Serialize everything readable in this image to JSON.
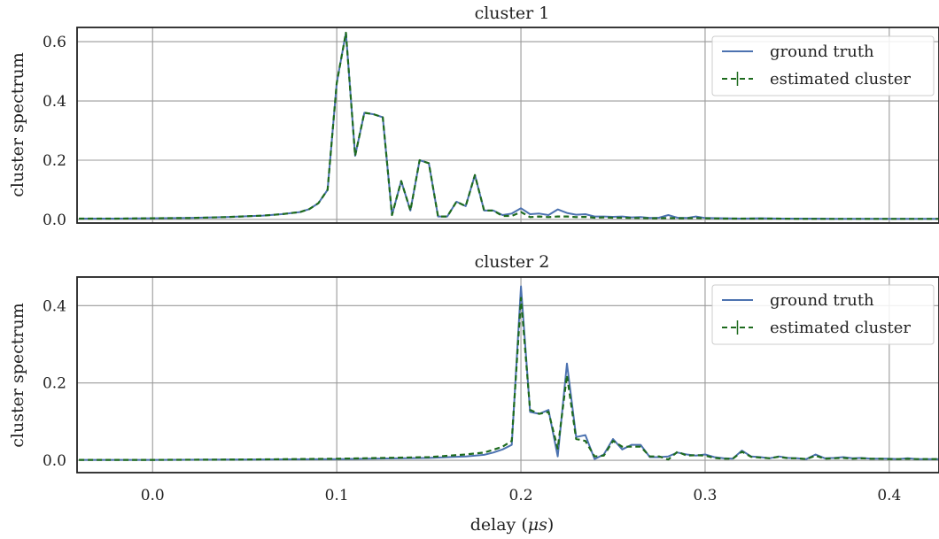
{
  "chart_data": [
    {
      "type": "line",
      "title": "cluster 1",
      "xlabel": "",
      "ylabel": "cluster spectrum",
      "xlim": [
        -0.041,
        0.427
      ],
      "ylim": [
        -0.012,
        0.648
      ],
      "xticks": [
        0.0,
        0.1,
        0.2,
        0.3,
        0.4
      ],
      "yticks": [
        0.0,
        0.2,
        0.4,
        0.6
      ],
      "ytick_labels": [
        "0.0",
        "0.2",
        "0.4",
        "0.6"
      ],
      "grid": true,
      "legend_position": "top-right",
      "x": [
        -0.04,
        -0.02,
        0.0,
        0.02,
        0.04,
        0.06,
        0.07,
        0.08,
        0.085,
        0.09,
        0.095,
        0.1,
        0.105,
        0.11,
        0.115,
        0.12,
        0.125,
        0.13,
        0.135,
        0.14,
        0.145,
        0.15,
        0.155,
        0.16,
        0.165,
        0.17,
        0.175,
        0.18,
        0.185,
        0.19,
        0.195,
        0.2,
        0.205,
        0.21,
        0.215,
        0.22,
        0.225,
        0.23,
        0.235,
        0.24,
        0.245,
        0.25,
        0.255,
        0.26,
        0.265,
        0.27,
        0.275,
        0.28,
        0.285,
        0.29,
        0.295,
        0.3,
        0.31,
        0.32,
        0.33,
        0.34,
        0.35,
        0.36,
        0.37,
        0.38,
        0.39,
        0.4,
        0.41,
        0.42,
        0.427
      ],
      "series": [
        {
          "name": "ground truth",
          "color": "#4c72b0",
          "style": "solid",
          "values": [
            0.003,
            0.003,
            0.004,
            0.005,
            0.008,
            0.013,
            0.018,
            0.025,
            0.035,
            0.055,
            0.1,
            0.46,
            0.63,
            0.215,
            0.36,
            0.355,
            0.345,
            0.015,
            0.13,
            0.03,
            0.2,
            0.19,
            0.01,
            0.01,
            0.06,
            0.045,
            0.15,
            0.03,
            0.03,
            0.015,
            0.02,
            0.038,
            0.018,
            0.02,
            0.015,
            0.034,
            0.022,
            0.016,
            0.018,
            0.01,
            0.01,
            0.009,
            0.01,
            0.007,
            0.008,
            0.005,
            0.006,
            0.015,
            0.006,
            0.005,
            0.01,
            0.005,
            0.004,
            0.003,
            0.004,
            0.003,
            0.003,
            0.003,
            0.002,
            0.002,
            0.002,
            0.002,
            0.002,
            0.002,
            0.002
          ]
        },
        {
          "name": "estimated cluster",
          "color": "#1e6b1e",
          "style": "dashed",
          "values": [
            0.003,
            0.003,
            0.004,
            0.005,
            0.008,
            0.013,
            0.018,
            0.025,
            0.035,
            0.055,
            0.1,
            0.46,
            0.63,
            0.215,
            0.36,
            0.355,
            0.345,
            0.015,
            0.13,
            0.03,
            0.2,
            0.19,
            0.01,
            0.01,
            0.06,
            0.045,
            0.15,
            0.03,
            0.03,
            0.012,
            0.012,
            0.025,
            0.008,
            0.01,
            0.008,
            0.01,
            0.01,
            0.008,
            0.009,
            0.006,
            0.007,
            0.006,
            0.006,
            0.005,
            0.005,
            0.004,
            0.004,
            0.005,
            0.004,
            0.004,
            0.005,
            0.004,
            0.003,
            0.003,
            0.003,
            0.003,
            0.002,
            0.002,
            0.002,
            0.002,
            0.002,
            0.002,
            0.002,
            0.002,
            0.002
          ]
        }
      ]
    },
    {
      "type": "line",
      "title": "cluster 2",
      "xlabel": "delay ($\\mu s$)",
      "ylabel": "cluster spectrum",
      "xlim": [
        -0.041,
        0.427
      ],
      "ylim": [
        -0.032,
        0.474
      ],
      "xticks": [
        0.0,
        0.1,
        0.2,
        0.3,
        0.4
      ],
      "xtick_labels": [
        "0.0",
        "0.1",
        "0.2",
        "0.3",
        "0.4"
      ],
      "yticks": [
        0.0,
        0.2,
        0.4
      ],
      "ytick_labels": [
        "0.0",
        "0.2",
        "0.4"
      ],
      "grid": true,
      "legend_position": "top-right",
      "x": [
        -0.04,
        0.0,
        0.05,
        0.1,
        0.15,
        0.17,
        0.18,
        0.185,
        0.19,
        0.195,
        0.2,
        0.205,
        0.21,
        0.215,
        0.22,
        0.225,
        0.23,
        0.235,
        0.24,
        0.245,
        0.25,
        0.255,
        0.26,
        0.265,
        0.27,
        0.275,
        0.28,
        0.285,
        0.29,
        0.295,
        0.3,
        0.305,
        0.31,
        0.315,
        0.32,
        0.325,
        0.33,
        0.335,
        0.34,
        0.345,
        0.35,
        0.355,
        0.36,
        0.365,
        0.37,
        0.375,
        0.38,
        0.385,
        0.39,
        0.395,
        0.4,
        0.405,
        0.41,
        0.415,
        0.42,
        0.427
      ],
      "series": [
        {
          "name": "ground truth",
          "color": "#4c72b0",
          "style": "solid",
          "values": [
            0.001,
            0.001,
            0.002,
            0.003,
            0.006,
            0.01,
            0.014,
            0.02,
            0.028,
            0.04,
            0.45,
            0.125,
            0.12,
            0.13,
            0.01,
            0.25,
            0.06,
            0.065,
            0.003,
            0.015,
            0.055,
            0.028,
            0.04,
            0.04,
            0.008,
            0.008,
            0.01,
            0.02,
            0.015,
            0.012,
            0.015,
            0.008,
            0.005,
            0.004,
            0.025,
            0.01,
            0.008,
            0.005,
            0.01,
            0.006,
            0.005,
            0.003,
            0.015,
            0.005,
            0.006,
            0.008,
            0.005,
            0.006,
            0.004,
            0.004,
            0.004,
            0.003,
            0.005,
            0.003,
            0.003,
            0.003
          ]
        },
        {
          "name": "estimated cluster",
          "color": "#1e6b1e",
          "style": "dashed",
          "values": [
            0.001,
            0.001,
            0.002,
            0.004,
            0.008,
            0.015,
            0.02,
            0.027,
            0.035,
            0.05,
            0.42,
            0.13,
            0.12,
            0.125,
            0.03,
            0.22,
            0.055,
            0.05,
            0.01,
            0.012,
            0.05,
            0.035,
            0.035,
            0.035,
            0.01,
            0.01,
            0.002,
            0.022,
            0.012,
            0.013,
            0.012,
            0.006,
            0.004,
            0.004,
            0.022,
            0.009,
            0.007,
            0.005,
            0.009,
            0.005,
            0.005,
            0.003,
            0.012,
            0.004,
            0.005,
            0.006,
            0.004,
            0.005,
            0.004,
            0.004,
            0.003,
            0.003,
            0.004,
            0.003,
            0.003,
            0.003
          ]
        }
      ]
    }
  ]
}
